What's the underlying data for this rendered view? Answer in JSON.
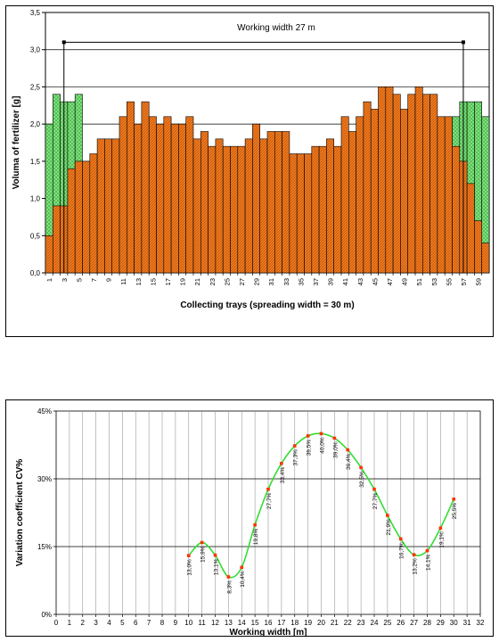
{
  "chart_data": [
    {
      "type": "bar",
      "ylabel": "Voluma of fertilizer [g]",
      "xlabel": "Collecting trays (spreading width =  30 m)",
      "annotation": "Working width  27 m",
      "ylim": [
        0,
        3.5
      ],
      "yticks": [
        "0,0",
        "0,5",
        "1,0",
        "1,5",
        "2,0",
        "2,5",
        "3,0",
        "3,5"
      ],
      "categories": [
        1,
        2,
        3,
        4,
        5,
        6,
        7,
        8,
        9,
        10,
        11,
        12,
        13,
        14,
        15,
        16,
        17,
        18,
        19,
        20,
        21,
        22,
        23,
        24,
        25,
        26,
        27,
        28,
        29,
        30,
        31,
        32,
        33,
        34,
        35,
        36,
        37,
        38,
        39,
        40,
        41,
        42,
        43,
        44,
        45,
        46,
        47,
        48,
        49,
        50,
        51,
        52,
        53,
        54,
        55,
        56,
        57,
        58,
        59,
        60
      ],
      "xtick_labels": [
        "1",
        "3",
        "5",
        "7",
        "9",
        "11",
        "13",
        "15",
        "17",
        "19",
        "21",
        "23",
        "25",
        "27",
        "29",
        "31",
        "33",
        "35",
        "37",
        "39",
        "41",
        "43",
        "45",
        "47",
        "49",
        "51",
        "53",
        "55",
        "57",
        "59"
      ],
      "grid": "horizontal",
      "series": [
        {
          "values": [
            0.5,
            0.9,
            0.9,
            1.4,
            1.5,
            1.5,
            1.6,
            1.8,
            1.8,
            1.8,
            2.1,
            2.3,
            2.0,
            2.3,
            2.1,
            2.0,
            2.1,
            2.0,
            2.0,
            2.1,
            1.8,
            1.9,
            1.7,
            1.8,
            1.7,
            1.7,
            1.7,
            1.8,
            2.0,
            1.8,
            1.9,
            1.9,
            1.9,
            1.6,
            1.6,
            1.6,
            1.7,
            1.7,
            1.8,
            1.7,
            2.1,
            1.9,
            2.1,
            2.3,
            2.2,
            2.5,
            2.5,
            2.4,
            2.2,
            2.4,
            2.5,
            2.4,
            2.4,
            2.1,
            2.1,
            1.7,
            1.5,
            1.2,
            0.7,
            0.4
          ],
          "color": "#f07a1e"
        },
        {
          "values": [
            2.0,
            2.4,
            2.3,
            2.3,
            2.4,
            0,
            0,
            0,
            0,
            0,
            0,
            0,
            0,
            0,
            0,
            0,
            0,
            0,
            0,
            0,
            0,
            0,
            0,
            0,
            0,
            0,
            0,
            0,
            0,
            0,
            0,
            0,
            0,
            0,
            0,
            0,
            0,
            0,
            0,
            0,
            0,
            0,
            0,
            0,
            0,
            0,
            0,
            0,
            0,
            0,
            0,
            0,
            0,
            0,
            2.0,
            2.1,
            2.3,
            2.3,
            2.3,
            2.1
          ],
          "color": "#7fe07f"
        }
      ]
    },
    {
      "type": "line",
      "ylabel": "Variation coefficient CV%",
      "xlabel": "Working width [m]",
      "xlim": [
        0,
        32
      ],
      "ylim": [
        0,
        45
      ],
      "xticks": [
        "0",
        "1",
        "2",
        "3",
        "4",
        "5",
        "6",
        "7",
        "8",
        "9",
        "10",
        "11",
        "12",
        "13",
        "14",
        "15",
        "16",
        "17",
        "18",
        "19",
        "20",
        "21",
        "22",
        "23",
        "24",
        "25",
        "26",
        "27",
        "28",
        "29",
        "30",
        "31",
        "32"
      ],
      "yticks": [
        "0%",
        "15%",
        "30%",
        "45%"
      ],
      "grid": "both",
      "line_color": "#33dd33",
      "marker_color": "#ff3300",
      "x": [
        10,
        11,
        12,
        13,
        14,
        15,
        16,
        17,
        18,
        19,
        20,
        21,
        22,
        23,
        24,
        25,
        26,
        27,
        28,
        29,
        30
      ],
      "y": [
        13.0,
        15.9,
        13.1,
        8.3,
        10.4,
        19.8,
        27.7,
        33.4,
        37.3,
        39.5,
        40.0,
        39.0,
        36.4,
        32.5,
        27.7,
        21.9,
        16.7,
        13.2,
        14.1,
        19.1,
        25.5
      ],
      "labels": [
        "13,0%",
        "15,9%",
        "13,1%",
        "8,3%",
        "10,4%",
        "19,8%",
        "27,7%",
        "33,4%",
        "37,3%",
        "39,5%",
        "40,0%",
        "39,0%",
        "36,4%",
        "32,5%",
        "27,7%",
        "21,9%",
        "16,7%",
        "13,2%",
        "14,1%",
        "19,1%",
        "25,5%"
      ]
    }
  ]
}
